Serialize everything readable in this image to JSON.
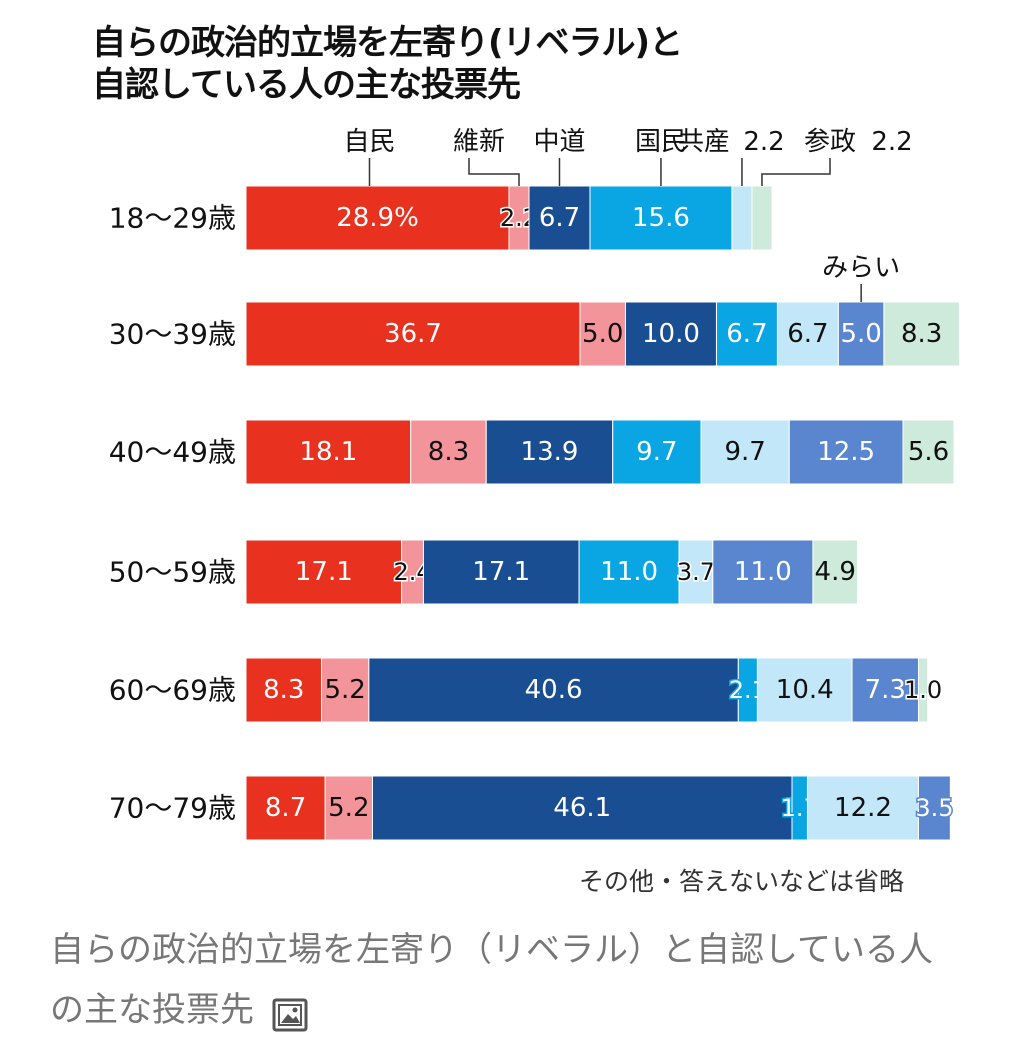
{
  "title_lines": [
    "自らの政治的立場を左寄り(リベラル)と",
    "自認している人の主な投票先"
  ],
  "note": "その他・答えないなどは省略",
  "caption": "自らの政治的立場を左寄り（リベラル）と自認している人の主な投票先",
  "caption_icon": "image-icon",
  "chart_data": {
    "type": "bar",
    "orientation": "horizontal-stacked",
    "unit": "%",
    "categories": [
      "18〜29歳",
      "30〜39歳",
      "40〜49歳",
      "50〜59歳",
      "60〜69歳",
      "70〜79歳"
    ],
    "series": [
      {
        "name": "自民",
        "color": "#e8321f",
        "text_color": "#ffffff",
        "values": [
          28.9,
          36.7,
          18.1,
          17.1,
          8.3,
          8.7
        ]
      },
      {
        "name": "維新",
        "color": "#f3949a",
        "text_color": "#111111",
        "values": [
          2.2,
          5.0,
          8.3,
          2.4,
          5.2,
          5.2
        ]
      },
      {
        "name": "中道",
        "color": "#1a4e93",
        "text_color": "#ffffff",
        "values": [
          6.7,
          10.0,
          13.9,
          17.1,
          40.6,
          46.1
        ]
      },
      {
        "name": "国民",
        "color": "#0aa6e4",
        "text_color": "#ffffff",
        "values": [
          15.6,
          6.7,
          9.7,
          11.0,
          2.1,
          1.7
        ]
      },
      {
        "name": "共産",
        "color": "#c2e7f8",
        "text_color": "#111111",
        "values": [
          2.2,
          6.7,
          9.7,
          3.7,
          10.4,
          12.2
        ]
      },
      {
        "name": "みらい",
        "color": "#5a85cf",
        "text_color": "#ffffff",
        "values": [
          null,
          5.0,
          12.5,
          11.0,
          7.3,
          3.5
        ]
      },
      {
        "name": "参政",
        "color": "#cdeadb",
        "text_color": "#111111",
        "values": [
          2.2,
          8.3,
          5.6,
          4.9,
          1.0,
          null
        ]
      }
    ],
    "data_labels": [
      [
        "28.9%",
        "2.2",
        "6.7",
        "15.6",
        "",
        "",
        ""
      ],
      [
        "36.7",
        "5.0",
        "10.0",
        "6.7",
        "6.7",
        "5.0",
        "8.3"
      ],
      [
        "18.1",
        "8.3",
        "13.9",
        "9.7",
        "9.7",
        "12.5",
        "5.6"
      ],
      [
        "17.1",
        "2.4",
        "17.1",
        "11.0",
        "3.7",
        "11.0",
        "4.9"
      ],
      [
        "8.3",
        "5.2",
        "40.6",
        "2.1",
        "10.4",
        "7.3",
        "1.0"
      ],
      [
        "8.7",
        "5.2",
        "46.1",
        "1.7",
        "12.2",
        "3.5",
        ""
      ]
    ],
    "header_legend": [
      "自民",
      "維新",
      "中道",
      "国民",
      "共産",
      "2.2",
      "参政",
      "2.2"
    ],
    "row2_legend": "みらい"
  }
}
